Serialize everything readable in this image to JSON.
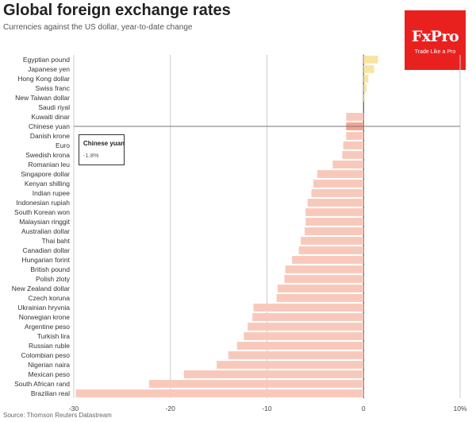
{
  "header": {
    "title": "Global foreign exchange rates",
    "subtitle": "Currencies against the US dollar, year-to-date change"
  },
  "logo": {
    "name": "FxPro",
    "tagline": "Trade Like a Pro"
  },
  "footer": {
    "source": "Source: Thomson Reuters Datastream"
  },
  "tooltip": {
    "label": "Chinese yuan",
    "value": "-1.8%"
  },
  "colors": {
    "positive": "#f9e4a3",
    "negative": "#f8c9bb",
    "highlight": "#f4a393",
    "gridline": "#cccccc",
    "zero_line": "#333333",
    "logo_bg": "#e8211f"
  },
  "chart_data": {
    "type": "bar",
    "orientation": "horizontal",
    "title": "Global foreign exchange rates",
    "subtitle": "Currencies against the US dollar, year-to-date change",
    "categories": [
      "Egyptian pound",
      "Japanese yen",
      "Hong Kong dollar",
      "Swiss franc",
      "New Taiwan dollar",
      "Saudi riyal",
      "Kuwaiti dinar",
      "Chinese yuan",
      "Danish krone",
      "Euro",
      "Swedish krona",
      "Romanian leu",
      "Singapore dollar",
      "Kenyan shilling",
      "Indian rupee",
      "Indonesian rupiah",
      "South Korean won",
      "Malaysian ringgit",
      "Australian dollar",
      "Thai baht",
      "Canadian dollar",
      "Hungarian forint",
      "British pound",
      "Polish zloty",
      "New Zealand dollar",
      "Czech koruna",
      "Ukrainian hryvnia",
      "Norwegian krone",
      "Argentine peso",
      "Turkish lira",
      "Russian ruble",
      "Colombian peso",
      "Nigerian naira",
      "Mexican peso",
      "South African rand",
      "Brazilian real"
    ],
    "values": [
      1.5,
      1.1,
      0.5,
      0.3,
      0.1,
      0.0,
      -1.8,
      -1.8,
      -1.8,
      -2.1,
      -2.2,
      -3.2,
      -4.8,
      -5.2,
      -5.4,
      -5.8,
      -6.0,
      -6.0,
      -6.1,
      -6.5,
      -6.7,
      -7.4,
      -8.1,
      -8.2,
      -8.9,
      -9.0,
      -11.4,
      -11.5,
      -12.0,
      -12.4,
      -13.1,
      -14.0,
      -15.2,
      -18.6,
      -22.2,
      -29.8
    ],
    "highlight": "Chinese yuan",
    "xlim": [
      -30,
      10
    ],
    "xticks": [
      -30,
      -20,
      -10,
      0,
      10
    ],
    "xtick_labels": [
      "-30",
      "-20",
      "-10",
      "0",
      "10%"
    ],
    "grid": true,
    "legend": "none"
  }
}
